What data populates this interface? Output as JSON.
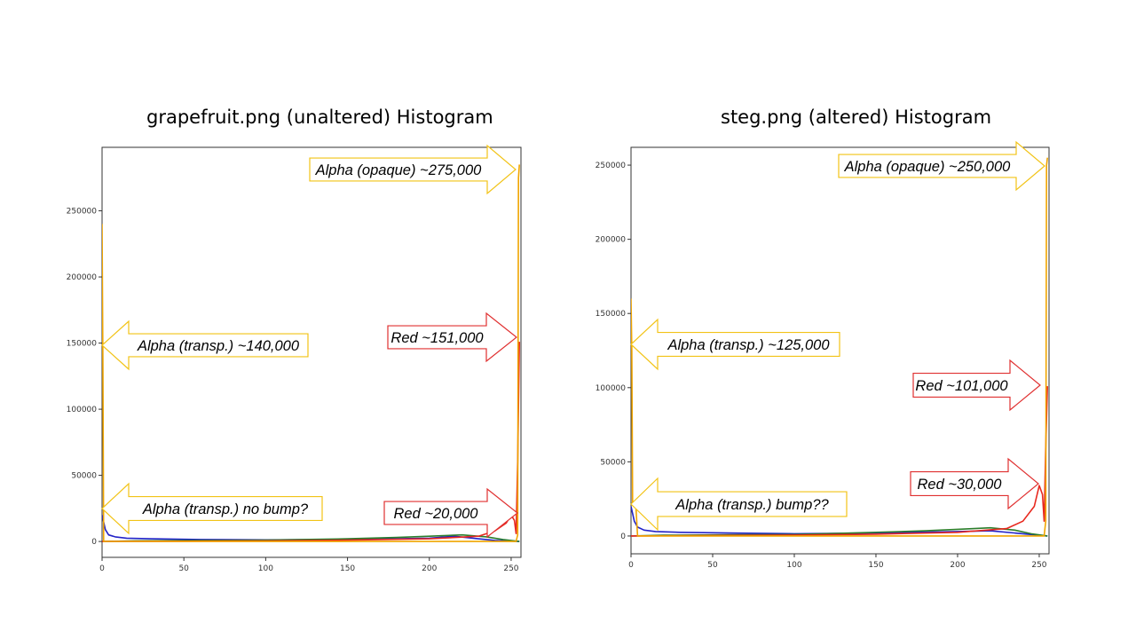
{
  "colors": {
    "blue": "#2323c8",
    "green": "#2b7d2b",
    "red": "#e8281e",
    "alpha": "#f0a500",
    "callout_red": "#e03030",
    "callout_yellow": "#f2c316"
  },
  "chart_data": [
    {
      "type": "line",
      "title": "grapefruit.png (unaltered) Histogram",
      "xlim": [
        0,
        256
      ],
      "ylim": [
        -12000,
        298000
      ],
      "xticks": [
        0,
        50,
        100,
        150,
        200,
        250
      ],
      "yticks": [
        0,
        50000,
        100000,
        150000,
        200000,
        250000
      ],
      "series": [
        {
          "color": "blue",
          "points": [
            [
              0,
              20000
            ],
            [
              2,
              9000
            ],
            [
              4,
              5000
            ],
            [
              8,
              3500
            ],
            [
              15,
              2500
            ],
            [
              30,
              2000
            ],
            [
              60,
              1500
            ],
            [
              100,
              1200
            ],
            [
              150,
              1500
            ],
            [
              200,
              2500
            ],
            [
              215,
              4000
            ],
            [
              230,
              2000
            ],
            [
              240,
              800
            ],
            [
              255,
              0
            ]
          ]
        },
        {
          "color": "green",
          "points": [
            [
              0,
              0
            ],
            [
              20,
              500
            ],
            [
              60,
              800
            ],
            [
              100,
              1000
            ],
            [
              150,
              2000
            ],
            [
              180,
              3000
            ],
            [
              200,
              4000
            ],
            [
              220,
              5000
            ],
            [
              235,
              3500
            ],
            [
              245,
              1500
            ],
            [
              255,
              0
            ]
          ]
        },
        {
          "color": "red",
          "points": [
            [
              0,
              0
            ],
            [
              50,
              200
            ],
            [
              100,
              500
            ],
            [
              150,
              1000
            ],
            [
              200,
              2000
            ],
            [
              230,
              4000
            ],
            [
              240,
              8000
            ],
            [
              247,
              14000
            ],
            [
              250,
              20000
            ],
            [
              252,
              16000
            ],
            [
              253,
              6000
            ],
            [
              254,
              60000
            ],
            [
              255,
              151000
            ]
          ]
        },
        {
          "color": "alpha",
          "points": [
            [
              0,
              240000
            ],
            [
              0.5,
              140000
            ],
            [
              1,
              0
            ],
            [
              253,
              0
            ],
            [
              254,
              5000
            ],
            [
              254.5,
              275000
            ],
            [
              255,
              285000
            ]
          ]
        }
      ],
      "annotations": [
        {
          "text": "Alpha (opaque) ~275,000",
          "color": "yellow"
        },
        {
          "text": "Alpha (transp.) ~140,000",
          "color": "yellow"
        },
        {
          "text": "Alpha (transp.) no bump?",
          "color": "yellow"
        },
        {
          "text": "Red ~151,000",
          "color": "red"
        },
        {
          "text": "Red ~20,000",
          "color": "red"
        }
      ]
    },
    {
      "type": "line",
      "title": "steg.png (altered) Histogram",
      "xlim": [
        0,
        256
      ],
      "ylim": [
        -12000,
        262000
      ],
      "xticks": [
        0,
        50,
        100,
        150,
        200,
        250
      ],
      "yticks": [
        0,
        50000,
        100000,
        150000,
        200000,
        250000
      ],
      "series": [
        {
          "color": "blue",
          "points": [
            [
              0,
              20000
            ],
            [
              2,
              10000
            ],
            [
              4,
              6000
            ],
            [
              8,
              4000
            ],
            [
              15,
              3000
            ],
            [
              30,
              2500
            ],
            [
              60,
              2000
            ],
            [
              100,
              1500
            ],
            [
              150,
              2000
            ],
            [
              200,
              3000
            ],
            [
              220,
              3500
            ],
            [
              240,
              1500
            ],
            [
              255,
              0
            ]
          ]
        },
        {
          "color": "green",
          "points": [
            [
              0,
              0
            ],
            [
              20,
              500
            ],
            [
              60,
              800
            ],
            [
              100,
              1000
            ],
            [
              150,
              2500
            ],
            [
              180,
              3500
            ],
            [
              200,
              4500
            ],
            [
              220,
              5500
            ],
            [
              235,
              4000
            ],
            [
              245,
              1500
            ],
            [
              255,
              0
            ]
          ]
        },
        {
          "color": "red",
          "points": [
            [
              0,
              0
            ],
            [
              50,
              300
            ],
            [
              100,
              600
            ],
            [
              150,
              1200
            ],
            [
              200,
              2500
            ],
            [
              230,
              5000
            ],
            [
              240,
              10000
            ],
            [
              247,
              20000
            ],
            [
              250,
              34000
            ],
            [
              252,
              28000
            ],
            [
              253,
              10000
            ],
            [
              254,
              60000
            ],
            [
              255,
              101000
            ]
          ]
        },
        {
          "color": "alpha",
          "points": [
            [
              0,
              160000
            ],
            [
              0.5,
              125000
            ],
            [
              1,
              22000
            ],
            [
              3,
              20000
            ],
            [
              4,
              0
            ],
            [
              253,
              0
            ],
            [
              254,
              10000
            ],
            [
              254.5,
              250000
            ],
            [
              255,
              255000
            ]
          ]
        }
      ],
      "annotations": [
        {
          "text": "Alpha (opaque) ~250,000",
          "color": "yellow"
        },
        {
          "text": "Alpha (transp.) ~125,000",
          "color": "yellow"
        },
        {
          "text": "Alpha (transp.) bump??",
          "color": "yellow"
        },
        {
          "text": "Red ~101,000",
          "color": "red"
        },
        {
          "text": "Red ~30,000",
          "color": "red"
        }
      ]
    }
  ]
}
